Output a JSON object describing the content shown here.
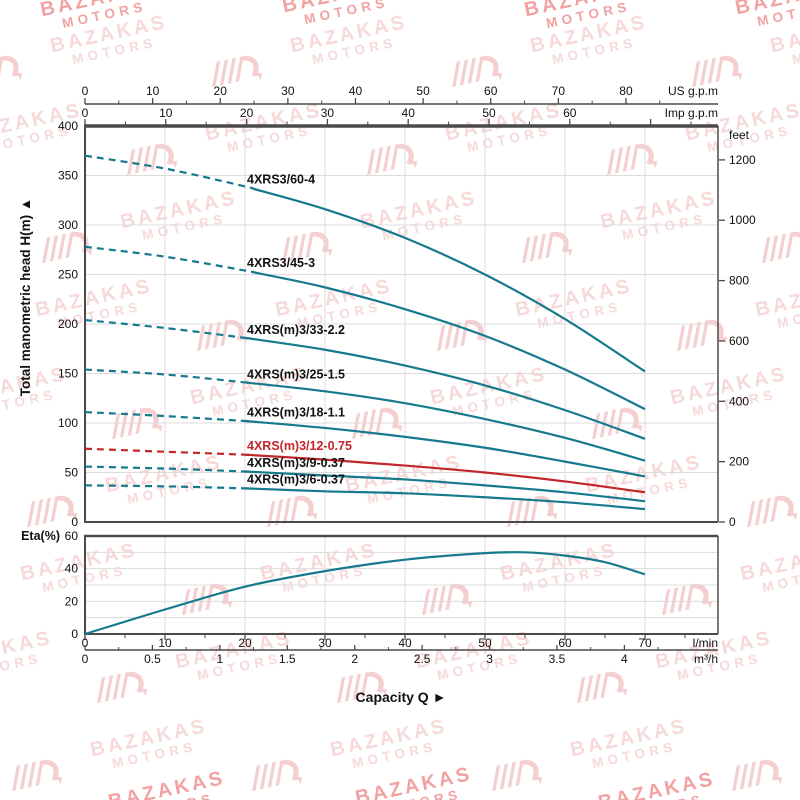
{
  "watermark": {
    "line1": "BAZAKAS",
    "line2": "MOTORS"
  },
  "colors": {
    "curve_teal": "#17798e",
    "curve_red": "#c2262b",
    "grid": "#dcdcdc",
    "axis": "#4a4a4a",
    "text": "#111111",
    "watermark_light": "#f7d9d9",
    "watermark_logo": "#f5cfcf",
    "watermark_dark": "#f2a2a2"
  },
  "chart_data": [
    {
      "type": "line",
      "role": "head-capacity-curves",
      "ylabel": "Total manometric head H(m)",
      "ylabel_arrow": "▲",
      "ylim": [
        0,
        400
      ],
      "y_ticks": [
        0,
        50,
        100,
        150,
        200,
        250,
        300,
        350,
        400
      ],
      "right_axis": {
        "label": "feet",
        "ticks": [
          0,
          200,
          400,
          600,
          800,
          1000,
          1200
        ]
      },
      "top_axis_us": {
        "label": "US g.p.m",
        "ticks": [
          0,
          10,
          20,
          30,
          40,
          50,
          60,
          70,
          80
        ]
      },
      "top_axis_imp": {
        "label": "Imp g.p.m",
        "ticks": [
          0,
          10,
          20,
          30,
          40,
          50,
          60
        ]
      },
      "x_unit": "l/min",
      "x": [
        0,
        10,
        20,
        30,
        40,
        50,
        60,
        70
      ],
      "grid": true,
      "legend_position": "labels-on-curves",
      "series": [
        {
          "name": "4XRS3/60-4",
          "highlight": false,
          "dashed_until": 21,
          "values": [
            370,
            357,
            339,
            316,
            287,
            250,
            205,
            152
          ]
        },
        {
          "name": "4XRS3/45-3",
          "highlight": false,
          "dashed_until": 21,
          "values": [
            278,
            268,
            254,
            237,
            215,
            188,
            154,
            114
          ]
        },
        {
          "name": "4XRS(m)3/33-2.2",
          "highlight": false,
          "dashed_until": 20,
          "values": [
            204,
            196,
            186,
            174,
            158,
            138,
            113,
            84
          ]
        },
        {
          "name": "4XRS(m)3/25-1.5",
          "highlight": false,
          "dashed_until": 20,
          "values": [
            154,
            149,
            141,
            132,
            120,
            104,
            85,
            62
          ]
        },
        {
          "name": "4XRS(m)3/18-1.1",
          "highlight": false,
          "dashed_until": 20,
          "values": [
            111,
            107,
            102,
            95,
            86,
            75,
            61,
            46
          ]
        },
        {
          "name": "4XRS(m)3/12-0.75",
          "highlight": true,
          "dashed_until": 20,
          "values": [
            74,
            71,
            68,
            63,
            57,
            50,
            41,
            30
          ]
        },
        {
          "name": "4XRS(m)3/9-0.37",
          "highlight": false,
          "dashed_until": 20,
          "values": [
            56,
            54,
            51,
            47,
            43,
            37,
            30,
            21
          ]
        },
        {
          "name": "4XRS(m)3/6-0.37",
          "highlight": false,
          "dashed_until": 20,
          "values": [
            37,
            36,
            34,
            31,
            29,
            25,
            20,
            13
          ]
        }
      ]
    },
    {
      "type": "line",
      "role": "efficiency-curve",
      "ylabel": "Eta(%)",
      "ylim": [
        0,
        60
      ],
      "y_ticks": [
        0,
        20,
        40,
        60
      ],
      "x": [
        0,
        10,
        20,
        30,
        40,
        50,
        55,
        60,
        65,
        70
      ],
      "series": [
        {
          "name": "Eta",
          "values": [
            0,
            15,
            29,
            38.5,
            45.5,
            49.5,
            50,
            48,
            44,
            36.5
          ]
        }
      ],
      "bottom_axis_lmin": {
        "label": "l/min",
        "ticks": [
          0,
          10,
          20,
          30,
          40,
          50,
          60,
          70
        ]
      },
      "bottom_axis_m3h": {
        "label": "m³/h",
        "ticks": [
          0,
          0.5,
          1,
          1.5,
          2,
          2.5,
          3,
          3.5,
          4
        ]
      },
      "xlabel": "Capacity Q",
      "xlabel_arrow": "►"
    }
  ]
}
